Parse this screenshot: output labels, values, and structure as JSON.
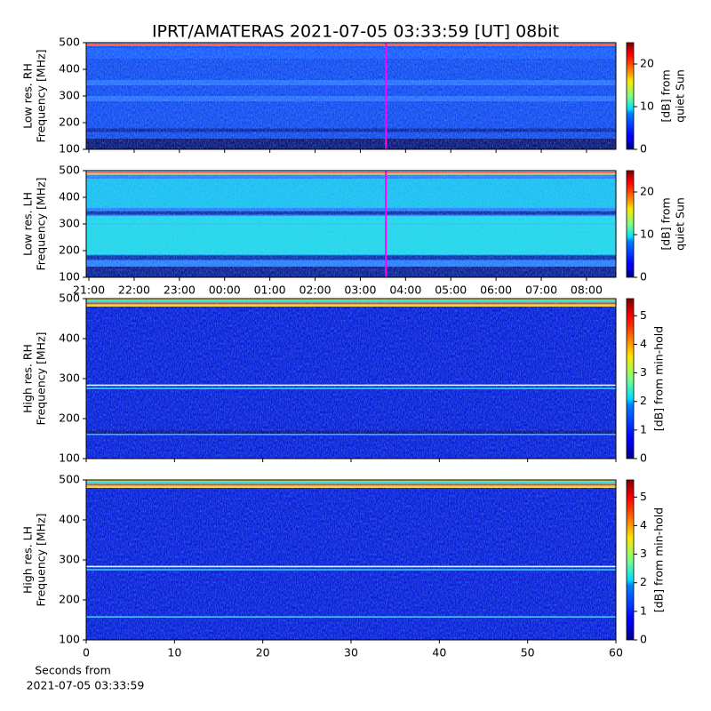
{
  "title": "IPRT/AMATERAS 2021-07-05 03:33:59 [UT]   08bit",
  "chart_data": [
    {
      "type": "heatmap",
      "ylabel": [
        "Low res. RH",
        "Frequency [MHz]"
      ],
      "ylim": [
        100,
        500
      ],
      "yticks": [
        100,
        200,
        300,
        400,
        500
      ],
      "xlim": [
        -0.06,
        11.65
      ],
      "vline": 6.566,
      "vline_color": "#ff00ff",
      "colormap": "jet",
      "clim": [
        0,
        25
      ],
      "cticks": [
        0,
        10,
        20
      ],
      "clabel": [
        "[dB] from",
        "quiet Sun"
      ]
    },
    {
      "type": "heatmap",
      "ylabel": [
        "Low res. LH",
        "Frequency [MHz]"
      ],
      "ylim": [
        100,
        500
      ],
      "yticks": [
        100,
        200,
        300,
        400,
        500
      ],
      "xlim": [
        -0.06,
        11.65
      ],
      "xticks": [
        {
          "value": 0,
          "label": "21:00"
        },
        {
          "value": 1,
          "label": "22:00"
        },
        {
          "value": 2,
          "label": "23:00"
        },
        {
          "value": 3,
          "label": "00:00"
        },
        {
          "value": 4,
          "label": "01:00"
        },
        {
          "value": 5,
          "label": "02:00"
        },
        {
          "value": 6,
          "label": "03:00"
        },
        {
          "value": 7,
          "label": "04:00"
        },
        {
          "value": 8,
          "label": "05:00"
        },
        {
          "value": 9,
          "label": "06:00"
        },
        {
          "value": 10,
          "label": "07:00"
        },
        {
          "value": 11,
          "label": "08:00"
        }
      ],
      "vline": 6.566,
      "vline_color": "#ff00ff",
      "colormap": "jet",
      "clim": [
        0,
        25
      ],
      "cticks": [
        0,
        10,
        20
      ],
      "clabel": [
        "[dB] from",
        "quiet Sun"
      ]
    },
    {
      "type": "heatmap",
      "ylabel": [
        "High res. RH",
        "Frequency [MHz]"
      ],
      "ylim": [
        100,
        500
      ],
      "yticks": [
        100,
        200,
        300,
        400,
        500
      ],
      "xlim": [
        0,
        60
      ],
      "colormap": "jet",
      "clim": [
        0,
        5.6
      ],
      "cticks": [
        0,
        1,
        2,
        3,
        4,
        5
      ],
      "clabel": [
        "[dB] from min-hold"
      ]
    },
    {
      "type": "heatmap",
      "ylabel": [
        "High res. LH",
        "Frequency [MHz]"
      ],
      "ylim": [
        100,
        500
      ],
      "yticks": [
        100,
        200,
        300,
        400,
        500
      ],
      "xlim": [
        0,
        60
      ],
      "xticks": [
        0,
        10,
        20,
        30,
        40,
        50,
        60
      ],
      "xlabel": [
        "Seconds from",
        "2021-07-05 03:33:59"
      ],
      "colormap": "jet",
      "clim": [
        0,
        5.6
      ],
      "cticks": [
        0,
        1,
        2,
        3,
        4,
        5
      ],
      "clabel": [
        "[dB] from min-hold"
      ]
    }
  ]
}
